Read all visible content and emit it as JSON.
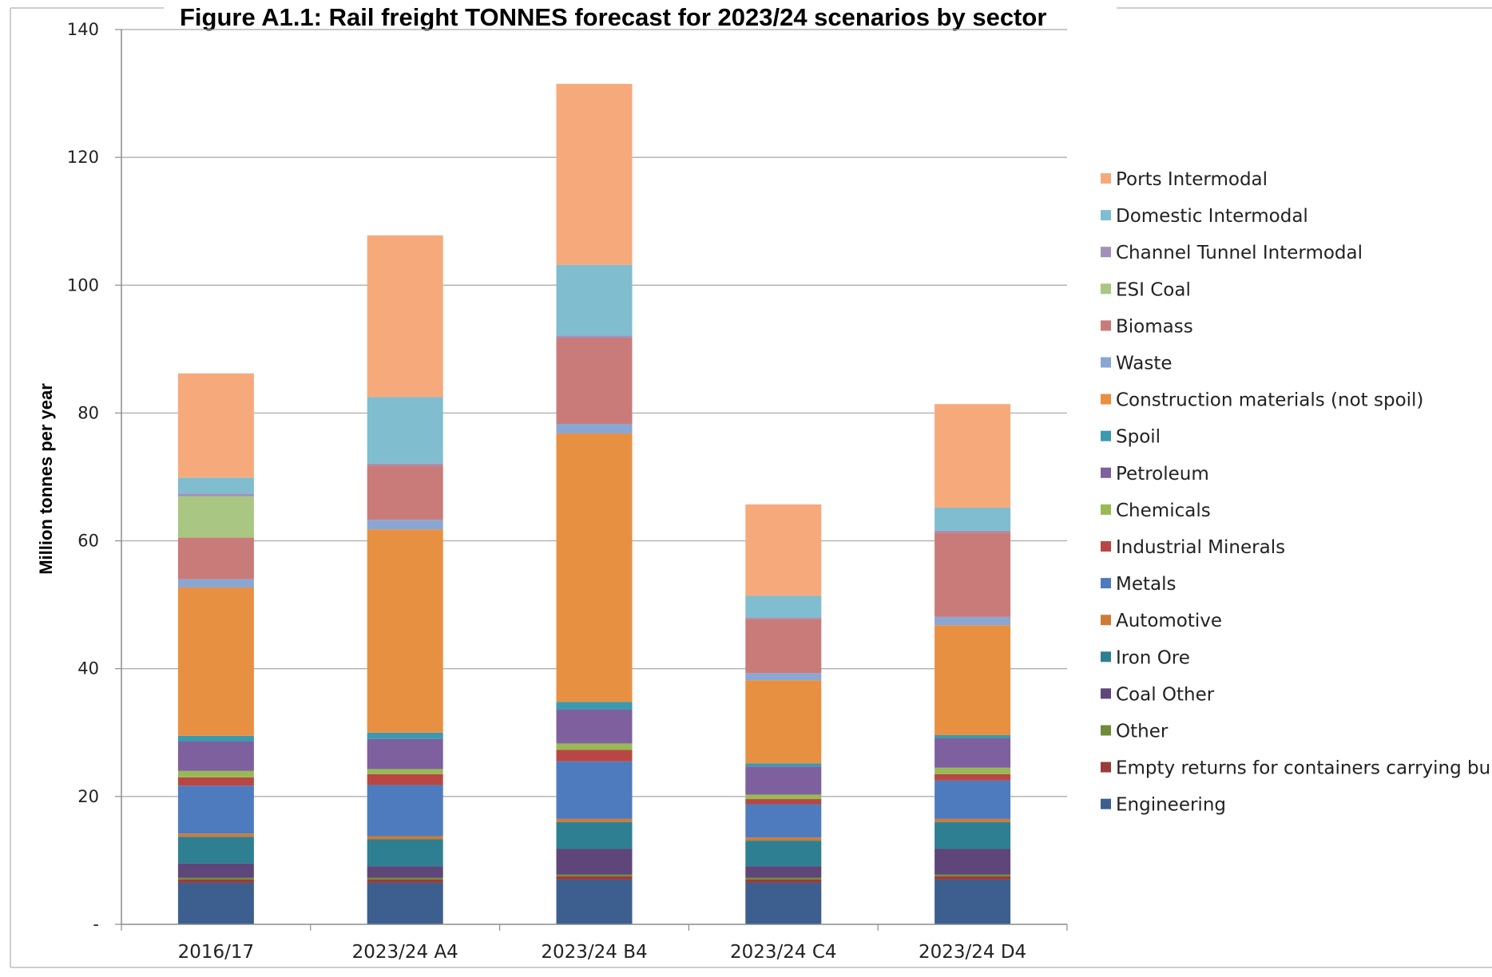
{
  "chart_data": {
    "type": "bar",
    "stacked": true,
    "title": "Figure A1.1:  Rail freight TONNES forecast for 2023/24 scenarios by sector",
    "xlabel": "",
    "ylabel": "Million tonnes per year",
    "ylim": [
      0,
      140
    ],
    "yticks": [
      0,
      20,
      40,
      60,
      80,
      100,
      120,
      140
    ],
    "ytick_labels": [
      "-",
      "20",
      "40",
      "60",
      "80",
      "100",
      "120",
      "140"
    ],
    "grid": true,
    "legend_position": "right",
    "categories": [
      "2016/17",
      "2023/24 A4",
      "2023/24 B4",
      "2023/24 C4",
      "2023/24 D4"
    ],
    "series": [
      {
        "name": "Engineering",
        "color": "#3d5f8f",
        "values": [
          6.5,
          6.5,
          7.0,
          6.5,
          7.0
        ]
      },
      {
        "name": "Empty returns for containers carrying bulks",
        "color": "#9b3b39",
        "values": [
          0.5,
          0.5,
          0.5,
          0.5,
          0.5
        ]
      },
      {
        "name": "Other",
        "color": "#6f8b38",
        "values": [
          0.3,
          0.3,
          0.3,
          0.3,
          0.3
        ]
      },
      {
        "name": "Coal Other",
        "color": "#5e467a",
        "values": [
          2.2,
          1.8,
          4.0,
          1.8,
          4.0
        ]
      },
      {
        "name": "Iron Ore",
        "color": "#2f7f93",
        "values": [
          4.2,
          4.2,
          4.2,
          4.0,
          4.2
        ]
      },
      {
        "name": "Automotive",
        "color": "#cc7c37",
        "values": [
          0.5,
          0.5,
          0.5,
          0.5,
          0.5
        ]
      },
      {
        "name": "Metals",
        "color": "#4e7bbd",
        "values": [
          7.5,
          8.0,
          9.0,
          5.2,
          6.0
        ]
      },
      {
        "name": "Industrial Minerals",
        "color": "#b84744",
        "values": [
          1.3,
          1.7,
          1.8,
          0.8,
          1.0
        ]
      },
      {
        "name": "Chemicals",
        "color": "#98b954",
        "values": [
          1.0,
          0.8,
          1.0,
          0.7,
          1.0
        ]
      },
      {
        "name": "Petroleum",
        "color": "#7e609e",
        "values": [
          4.6,
          4.7,
          5.3,
          4.4,
          4.6
        ]
      },
      {
        "name": "Spoil",
        "color": "#3b99b0",
        "values": [
          0.9,
          1.0,
          1.2,
          0.5,
          0.5
        ]
      },
      {
        "name": "Construction materials (not spoil)",
        "color": "#e89042",
        "values": [
          23.2,
          31.8,
          42.0,
          13.0,
          17.2
        ]
      },
      {
        "name": "Waste",
        "color": "#8aa6d2",
        "values": [
          1.3,
          1.5,
          1.5,
          1.1,
          1.3
        ]
      },
      {
        "name": "Biomass",
        "color": "#c97b79",
        "values": [
          6.5,
          8.5,
          13.5,
          8.5,
          13.2
        ]
      },
      {
        "name": "ESI Coal",
        "color": "#a9c682",
        "values": [
          6.5,
          0,
          0,
          0,
          0
        ]
      },
      {
        "name": "Channel Tunnel Intermodal",
        "color": "#a290b9",
        "values": [
          0.4,
          0.3,
          0.3,
          0.2,
          0.3
        ]
      },
      {
        "name": "Domestic Intermodal",
        "color": "#7fbdcf",
        "values": [
          2.5,
          10.4,
          11.1,
          3.4,
          3.6
        ]
      },
      {
        "name": "Ports Intermodal",
        "color": "#f6aa7c",
        "values": [
          16.3,
          25.3,
          28.3,
          14.3,
          16.2
        ]
      }
    ],
    "legend_order": [
      "Ports Intermodal",
      "Domestic Intermodal",
      "Channel Tunnel Intermodal",
      "ESI Coal",
      "Biomass",
      "Waste",
      "Construction materials (not spoil)",
      "Spoil",
      "Petroleum",
      "Chemicals",
      "Industrial Minerals",
      "Metals",
      "Automotive",
      "Iron Ore",
      "Coal Other",
      "Other",
      "Empty returns for containers carrying bulks",
      "Engineering"
    ]
  }
}
